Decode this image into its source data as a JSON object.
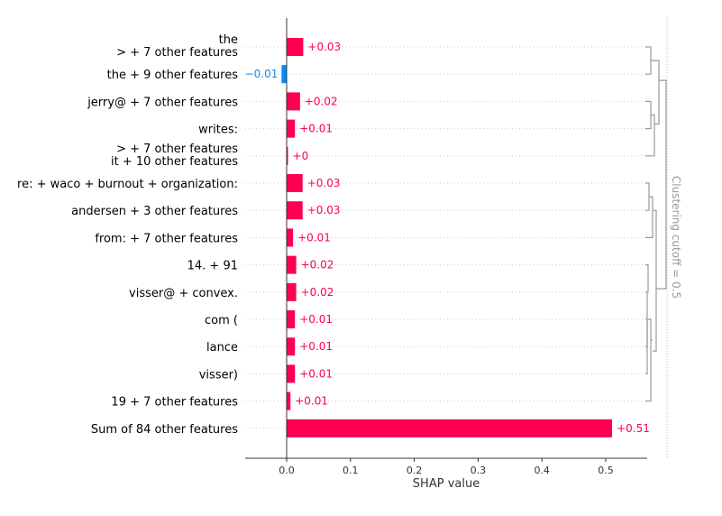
{
  "colors": {
    "positive": "#ff0051",
    "negative": "#008bfb",
    "positive_label": "#ff0051",
    "negative_label": "#1e88e5",
    "gridline": "#cccccc",
    "dendrogram": "#999999",
    "axis": "#333333"
  },
  "chart_data": {
    "type": "bar",
    "orientation": "horizontal",
    "xlabel": "SHAP value",
    "xlim": [
      -0.065,
      0.565
    ],
    "xticks": [
      0.0,
      0.1,
      0.2,
      0.3,
      0.4,
      0.5
    ],
    "xtick_labels": [
      "0.0",
      "0.1",
      "0.2",
      "0.3",
      "0.4",
      "0.5"
    ],
    "grid": "horizontal dotted row lines",
    "categories": [
      [
        "the",
        "> + 7 other features"
      ],
      [
        "the + 9 other features"
      ],
      [
        "jerry@ + 7 other features"
      ],
      [
        "writes:"
      ],
      [
        "> + 7 other features",
        "it + 10 other features"
      ],
      [
        "re: + waco + burnout + organization:"
      ],
      [
        "andersen + 3 other features"
      ],
      [
        "from: + 7 other features"
      ],
      [
        "14. + 91"
      ],
      [
        "visser@ + convex."
      ],
      [
        "com ("
      ],
      [
        "lance"
      ],
      [
        "visser)"
      ],
      [
        "19 + 7 other features"
      ],
      [
        "Sum of 84 other features"
      ]
    ],
    "values": [
      0.026,
      -0.008,
      0.021,
      0.013,
      0.002,
      0.025,
      0.025,
      0.01,
      0.015,
      0.015,
      0.013,
      0.013,
      0.013,
      0.006,
      0.51
    ],
    "value_labels": [
      "+0.03",
      "−0.01",
      "+0.02",
      "+0.01",
      "+0",
      "+0.03",
      "+0.03",
      "+0.01",
      "+0.02",
      "+0.02",
      "+0.01",
      "+0.01",
      "+0.01",
      "+0.01",
      "+0.51"
    ],
    "clustering_label": "Clustering cutoff = 0.5"
  }
}
